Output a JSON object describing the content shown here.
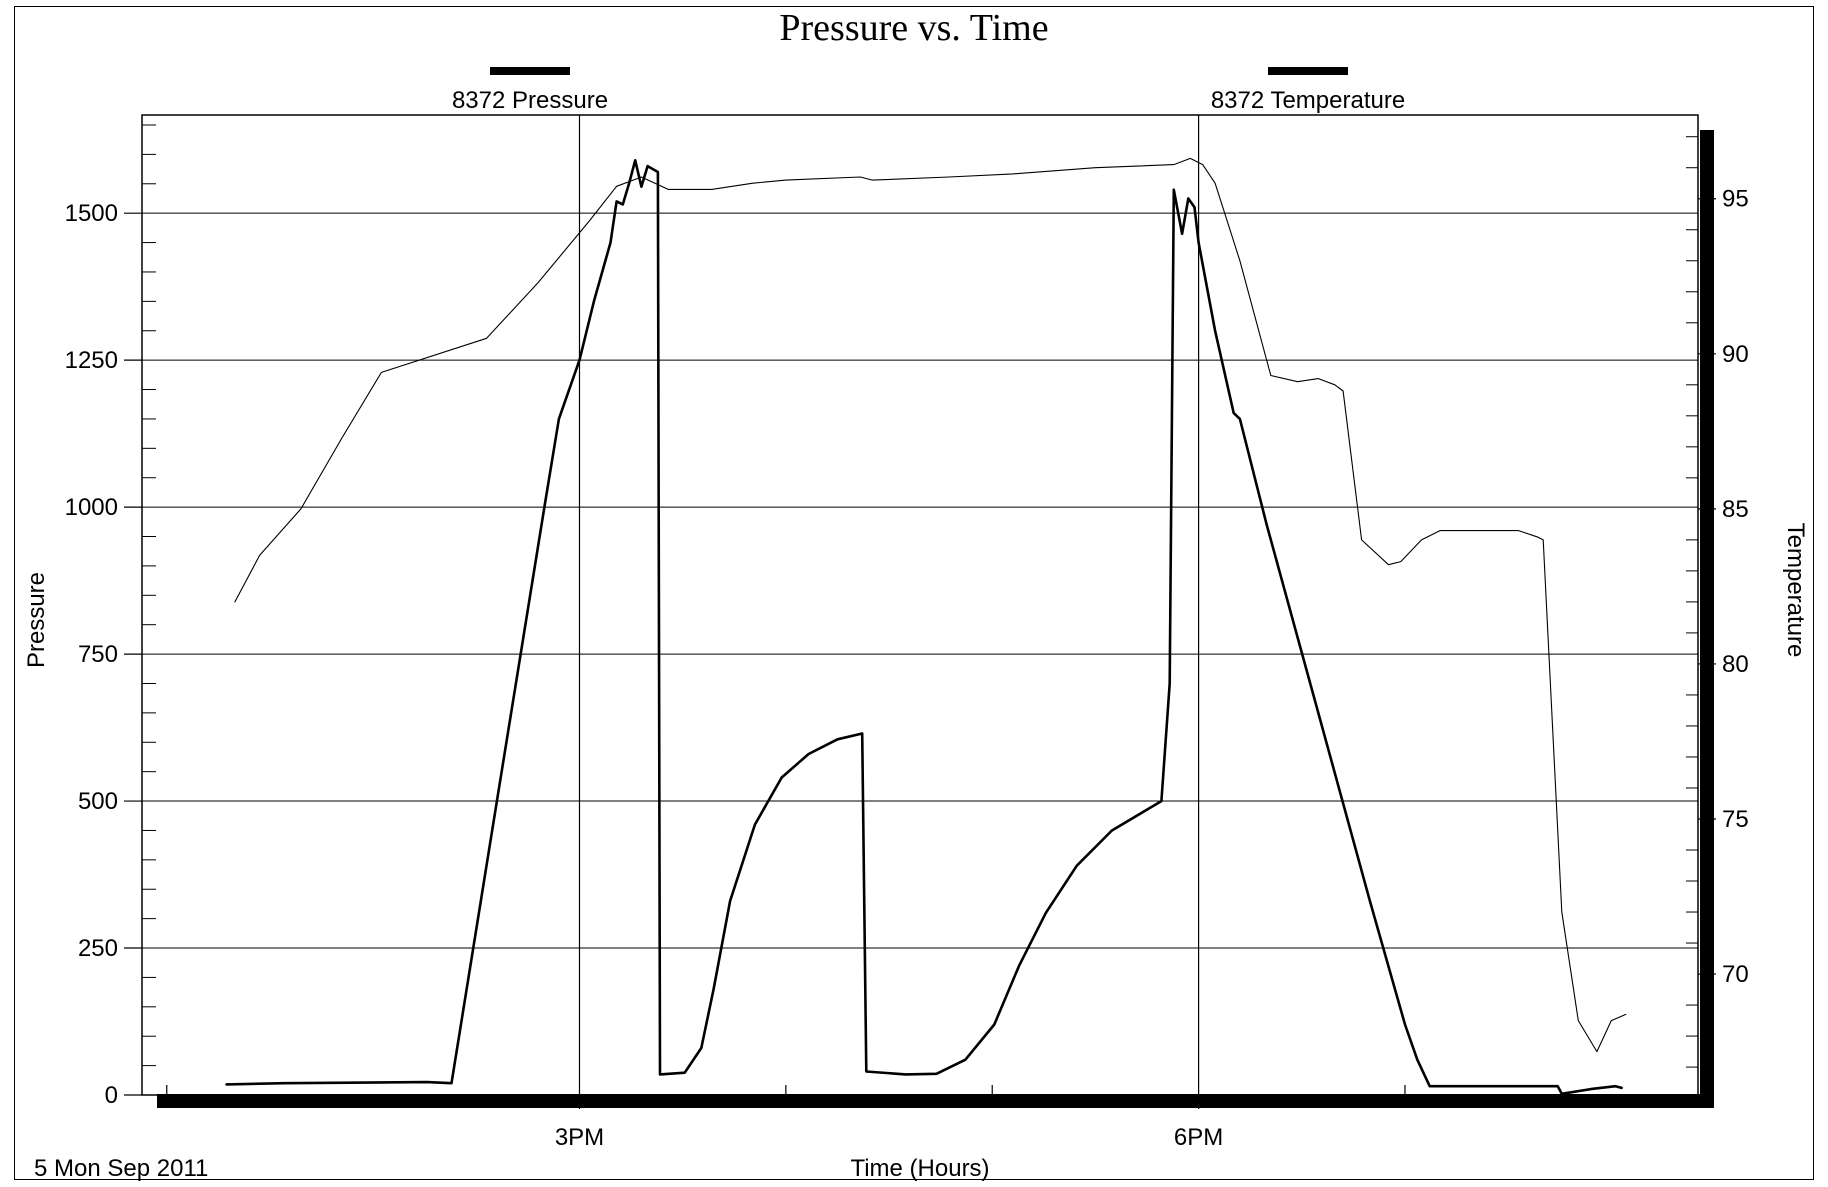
{
  "chart_data": {
    "type": "line",
    "title": "Pressure vs. Time",
    "xlabel": "Time (Hours)",
    "ylabel": "Pressure",
    "y2label": "Temperature",
    "date_label": "5 Mon Sep 2011",
    "x_unit": "hours",
    "x_range": [
      12.88,
      20.42
    ],
    "x_tick_labels": [
      {
        "x": 15,
        "label": "3PM"
      },
      {
        "x": 18,
        "label": "6PM"
      }
    ],
    "x_minor_ticks": [
      13,
      16,
      17,
      19
    ],
    "ylim": [
      0,
      1667
    ],
    "y_ticks": [
      0,
      250,
      500,
      750,
      1000,
      1250,
      1500
    ],
    "y2lim": [
      66.1,
      97.7
    ],
    "y2_ticks": [
      70,
      75,
      80,
      85,
      90,
      95
    ],
    "grid": true,
    "legend": [
      {
        "name": "8372 Pressure",
        "position": "top-left",
        "color": "#000000"
      },
      {
        "name": "8372 Temperature",
        "position": "top-right",
        "color": "#000000"
      }
    ],
    "series": [
      {
        "name": "8372 Pressure",
        "axis": "left",
        "style": "thick",
        "color": "#000000",
        "points": [
          [
            13.29,
            18
          ],
          [
            13.57,
            20
          ],
          [
            14.26,
            22
          ],
          [
            14.38,
            20
          ],
          [
            14.6,
            500
          ],
          [
            14.83,
            1000
          ],
          [
            14.9,
            1150
          ],
          [
            15.0,
            1250
          ],
          [
            15.07,
            1350
          ],
          [
            15.15,
            1450
          ],
          [
            15.18,
            1520
          ],
          [
            15.21,
            1515
          ],
          [
            15.24,
            1550
          ],
          [
            15.27,
            1590
          ],
          [
            15.3,
            1545
          ],
          [
            15.33,
            1580
          ],
          [
            15.38,
            1570
          ],
          [
            15.39,
            35
          ],
          [
            15.51,
            38
          ],
          [
            15.59,
            80
          ],
          [
            15.65,
            180
          ],
          [
            15.73,
            330
          ],
          [
            15.85,
            460
          ],
          [
            15.98,
            540
          ],
          [
            16.11,
            580
          ],
          [
            16.25,
            605
          ],
          [
            16.37,
            615
          ],
          [
            16.39,
            40
          ],
          [
            16.58,
            35
          ],
          [
            16.73,
            36
          ],
          [
            16.87,
            60
          ],
          [
            17.01,
            120
          ],
          [
            17.13,
            220
          ],
          [
            17.26,
            310
          ],
          [
            17.41,
            390
          ],
          [
            17.58,
            450
          ],
          [
            17.82,
            500
          ],
          [
            17.86,
            700
          ],
          [
            17.88,
            1540
          ],
          [
            17.92,
            1465
          ],
          [
            17.95,
            1525
          ],
          [
            17.98,
            1510
          ],
          [
            18.0,
            1450
          ],
          [
            18.08,
            1300
          ],
          [
            18.17,
            1160
          ],
          [
            18.2,
            1150
          ],
          [
            18.33,
            970
          ],
          [
            18.58,
            650
          ],
          [
            18.83,
            330
          ],
          [
            19.0,
            120
          ],
          [
            19.06,
            60
          ],
          [
            19.12,
            15
          ],
          [
            19.55,
            15
          ],
          [
            19.74,
            15
          ],
          [
            19.76,
            2
          ],
          [
            19.9,
            10
          ],
          [
            20.02,
            15
          ],
          [
            20.05,
            12
          ]
        ]
      },
      {
        "name": "8372 Temperature",
        "axis": "right",
        "style": "thin",
        "color": "#000000",
        "points": [
          [
            13.33,
            82.0
          ],
          [
            13.45,
            83.5
          ],
          [
            13.65,
            85.0
          ],
          [
            13.85,
            87.3
          ],
          [
            14.04,
            89.4
          ],
          [
            14.55,
            90.5
          ],
          [
            14.8,
            92.3
          ],
          [
            15.05,
            94.3
          ],
          [
            15.18,
            95.4
          ],
          [
            15.3,
            95.7
          ],
          [
            15.43,
            95.3
          ],
          [
            15.64,
            95.3
          ],
          [
            15.84,
            95.5
          ],
          [
            16.0,
            95.6
          ],
          [
            16.36,
            95.7
          ],
          [
            16.42,
            95.6
          ],
          [
            16.79,
            95.7
          ],
          [
            17.1,
            95.8
          ],
          [
            17.5,
            96.0
          ],
          [
            17.88,
            96.1
          ],
          [
            17.96,
            96.3
          ],
          [
            18.02,
            96.1
          ],
          [
            18.08,
            95.5
          ],
          [
            18.2,
            93.0
          ],
          [
            18.35,
            89.3
          ],
          [
            18.48,
            89.1
          ],
          [
            18.58,
            89.2
          ],
          [
            18.66,
            89.0
          ],
          [
            18.7,
            88.8
          ],
          [
            18.79,
            84.0
          ],
          [
            18.92,
            83.2
          ],
          [
            18.98,
            83.3
          ],
          [
            19.08,
            84.0
          ],
          [
            19.17,
            84.3
          ],
          [
            19.28,
            84.3
          ],
          [
            19.55,
            84.3
          ],
          [
            19.64,
            84.1
          ],
          [
            19.67,
            84.0
          ],
          [
            19.7,
            80.0
          ],
          [
            19.76,
            72.0
          ],
          [
            19.84,
            68.5
          ],
          [
            19.93,
            67.5
          ],
          [
            20.0,
            68.5
          ],
          [
            20.07,
            68.7
          ]
        ]
      }
    ]
  }
}
